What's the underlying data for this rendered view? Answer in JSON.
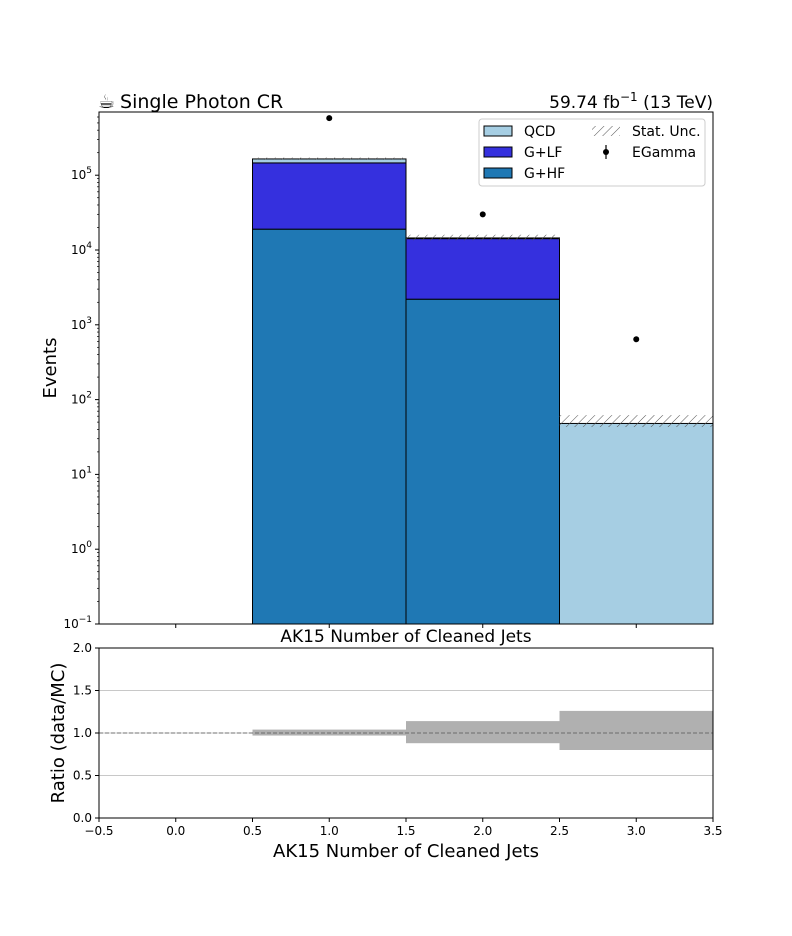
{
  "header": {
    "title_icon": "coffee-cup-icon",
    "title_glyph": "☕",
    "title": "Single Photon CR",
    "lumi_value": "59.74 fb",
    "lumi_exponent": "−1",
    "lumi_suffix": " (13 TeV)"
  },
  "colors": {
    "QCD": "#a6cee3",
    "G+LF": "#3530de",
    "G+HF": "#1f78b4",
    "data": "#000000",
    "ratio_band": "#b0b0b0",
    "hatch": "#555555"
  },
  "chart_data": [
    {
      "type": "bar",
      "subtype": "stacked-histogram",
      "xlabel": "AK15 Number of Cleaned Jets",
      "ylabel": "Events",
      "yscale": "log",
      "xlim": [
        -0.5,
        3.5
      ],
      "ylim": [
        0.1,
        700000
      ],
      "bin_edges": [
        -0.5,
        0.5,
        1.5,
        2.5,
        3.5
      ],
      "xticks": [
        0.0,
        1.0,
        2.0,
        3.0
      ],
      "yticks": [
        {
          "value": 0.1,
          "base": "10",
          "exp": "−1"
        },
        {
          "value": 1,
          "base": "10",
          "exp": "0"
        },
        {
          "value": 10,
          "base": "10",
          "exp": "1"
        },
        {
          "value": 100,
          "base": "10",
          "exp": "2"
        },
        {
          "value": 1000,
          "base": "10",
          "exp": "3"
        },
        {
          "value": 10000,
          "base": "10",
          "exp": "4"
        },
        {
          "value": 100000,
          "base": "10",
          "exp": "5"
        }
      ],
      "series": [
        {
          "name": "G+HF",
          "values": [
            0,
            19000,
            2200,
            0
          ]
        },
        {
          "name": "G+LF",
          "values": [
            0,
            127000,
            12000,
            0
          ]
        },
        {
          "name": "QCD",
          "values": [
            0,
            19000,
            300,
            48
          ]
        }
      ],
      "stat_unc": {
        "name": "Stat. Unc.",
        "low": [
          0,
          161000,
          13500,
          43
        ],
        "high": [
          0,
          172000,
          16000,
          62
        ]
      },
      "data_points": {
        "name": "EGamma",
        "x": [
          1.0,
          2.0,
          3.0
        ],
        "y": [
          580000,
          30000,
          640
        ]
      },
      "legend": {
        "placement": "top-right",
        "columns": [
          [
            "QCD",
            "G+LF",
            "G+HF"
          ],
          [
            "Stat. Unc.",
            "EGamma"
          ]
        ]
      }
    },
    {
      "type": "area",
      "subtype": "ratio-band",
      "title": "AK15 Number of Cleaned Jets",
      "xlabel": "AK15 Number of Cleaned Jets",
      "ylabel": "Ratio (data/MC)",
      "xlim": [
        -0.5,
        3.5
      ],
      "ylim": [
        0.0,
        2.0
      ],
      "grid": true,
      "reference_line": 1.0,
      "xticks": [
        "−0.5",
        "0.0",
        "0.5",
        "1.0",
        "1.5",
        "2.0",
        "2.5",
        "3.0",
        "3.5"
      ],
      "yticks": [
        "0.0",
        "0.5",
        "1.0",
        "1.5",
        "2.0"
      ],
      "band": {
        "bins": [
          [
            0.5,
            1.5
          ],
          [
            1.5,
            2.5
          ],
          [
            2.5,
            3.5
          ]
        ],
        "low": [
          0.97,
          0.88,
          0.8
        ],
        "high": [
          1.04,
          1.14,
          1.26
        ]
      }
    }
  ]
}
